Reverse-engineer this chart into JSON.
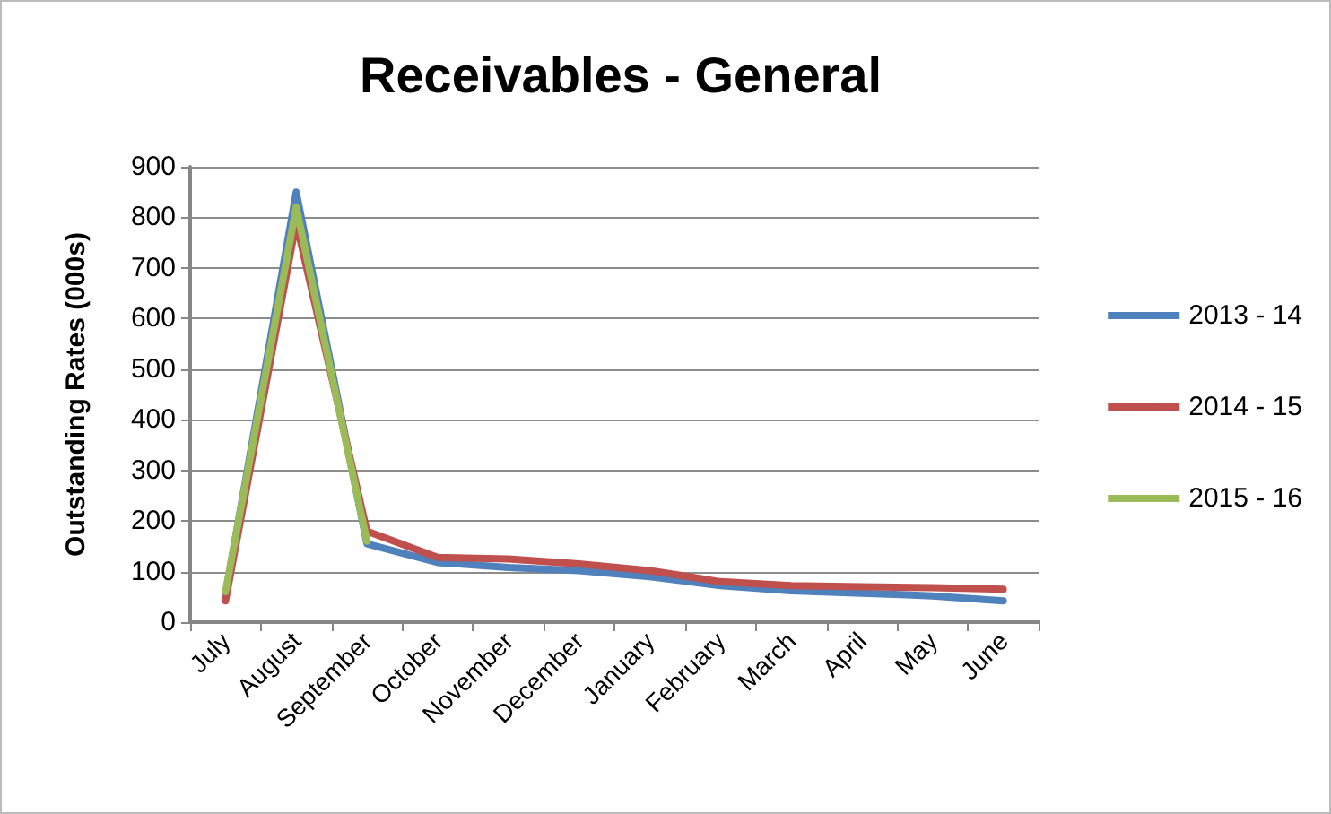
{
  "chart_data": {
    "type": "line",
    "title": "Receivables - General",
    "ylabel": "Outstanding Rates (000s)",
    "categories": [
      "July",
      "August",
      "September",
      "October",
      "November",
      "December",
      "January",
      "February",
      "March",
      "April",
      "May",
      "June"
    ],
    "series": [
      {
        "name": "2013 - 14",
        "color": "#4f81bd",
        "values": [
          55,
          850,
          155,
          118,
          108,
          102,
          90,
          72,
          62,
          57,
          52,
          42
        ]
      },
      {
        "name": "2014 - 15",
        "color": "#c0504d",
        "values": [
          42,
          790,
          180,
          128,
          125,
          115,
          102,
          80,
          72,
          70,
          68,
          65
        ]
      },
      {
        "name": "2015 - 16",
        "color": "#9bbb59",
        "values": [
          60,
          820,
          160,
          null,
          null,
          null,
          null,
          null,
          null,
          null,
          null,
          null
        ]
      }
    ],
    "ylim": [
      0,
      900
    ],
    "yticks": [
      0,
      100,
      200,
      300,
      400,
      500,
      600,
      700,
      800,
      900
    ],
    "grid": "y",
    "legend": "right",
    "marker": "none",
    "line_style": "solid"
  }
}
